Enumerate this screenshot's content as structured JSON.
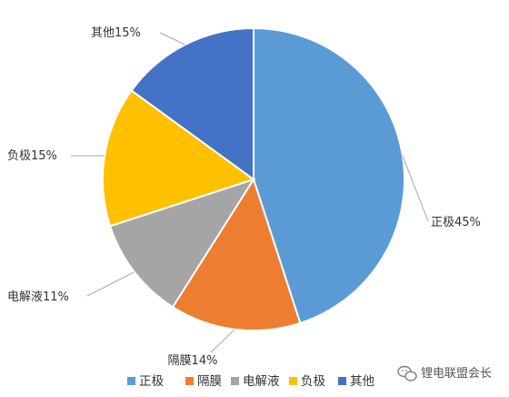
{
  "chart_data": {
    "type": "pie",
    "slices": [
      {
        "name": "正极",
        "value": 45,
        "label": "正极45%",
        "color": "#5B9BD5"
      },
      {
        "name": "隔膜",
        "value": 14,
        "label": "隔膜14%",
        "color": "#ED7D31"
      },
      {
        "name": "电解液",
        "value": 11,
        "label": "电解液11%",
        "color": "#A5A5A5"
      },
      {
        "name": "负极",
        "value": 15,
        "label": "负极15%",
        "color": "#FFC000"
      },
      {
        "name": "其他",
        "value": 15,
        "label": "其他15%",
        "color": "#4472C4"
      }
    ],
    "legend_position": "bottom",
    "start": "12 o'clock",
    "direction": "clockwise"
  },
  "watermark": {
    "text": "锂电联盟会长",
    "icon": "wechat-icon"
  }
}
